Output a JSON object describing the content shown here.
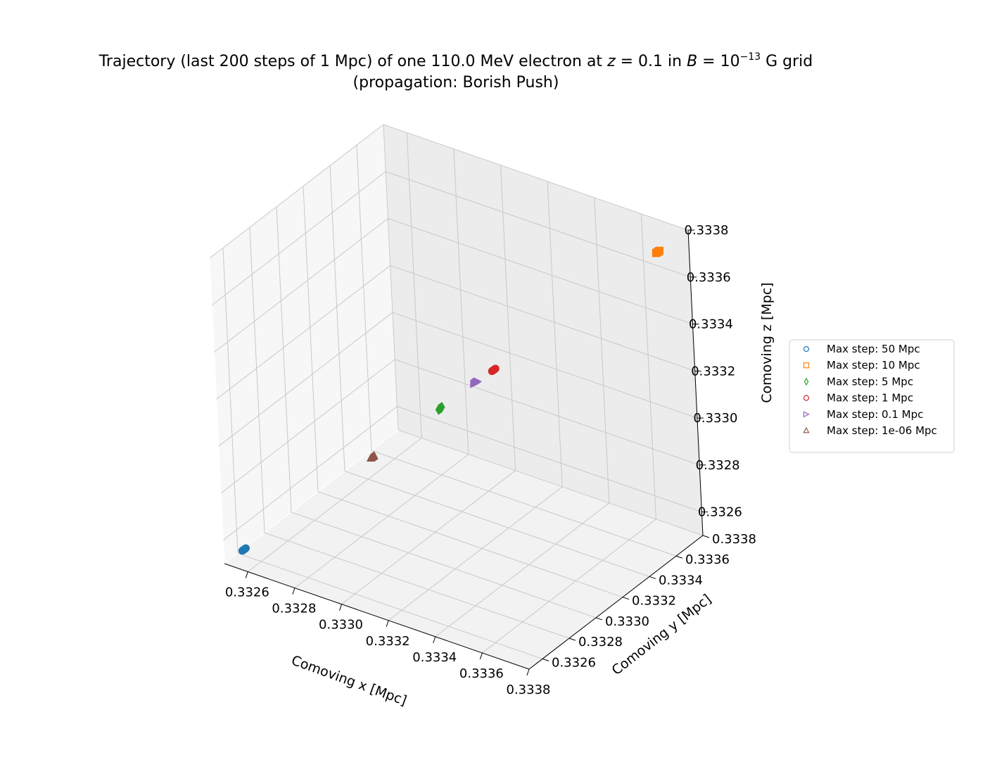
{
  "chart_data": {
    "type": "scatter",
    "title_line1_prefix": "Trajectory (last 200 steps of 1 Mpc) of one 110.0 MeV electron at ",
    "title_z_var": "z",
    "title_eq1": " = 0.1 in ",
    "title_b_var": "B",
    "title_eq2": " = 10",
    "title_exp": "−13",
    "title_suffix": " G grid",
    "title_line2": "(propagation: Borish Push)",
    "xlabel": "Comoving x [Mpc]",
    "ylabel": "Comoving y [Mpc]",
    "zlabel": "Comoving z [Mpc]",
    "x_ticks": [
      "0.3326",
      "0.3328",
      "0.3330",
      "0.3332",
      "0.3334",
      "0.3336",
      "0.3338"
    ],
    "y_ticks": [
      "0.3326",
      "0.3328",
      "0.3330",
      "0.3332",
      "0.3334",
      "0.3336",
      "0.3338"
    ],
    "z_ticks": [
      "0.3326",
      "0.3328",
      "0.3330",
      "0.3332",
      "0.3334",
      "0.3336",
      "0.3338"
    ],
    "xlim": [
      0.3325,
      0.3338
    ],
    "ylim": [
      0.3325,
      0.3338
    ],
    "zlim": [
      0.3325,
      0.3338
    ],
    "grid": true,
    "legend_position": "right",
    "series": [
      {
        "name": "Max step: 50 Mpc",
        "marker": "o",
        "color": "#1f77b4",
        "x": [
          0.33255,
          0.33256
        ],
        "y": [
          0.33255,
          0.33256
        ],
        "z": [
          0.33255,
          0.33256
        ]
      },
      {
        "name": "Max step: 10 Mpc",
        "marker": "s",
        "color": "#ff7f0e",
        "x": [
          0.33371,
          0.33372
        ],
        "y": [
          0.33371,
          0.33372
        ],
        "z": [
          0.33371,
          0.33372
        ]
      },
      {
        "name": "Max step: 5 Mpc",
        "marker": "d",
        "color": "#2ca02c",
        "x": [
          0.3331,
          0.33311
        ],
        "y": [
          0.3331,
          0.33311
        ],
        "z": [
          0.3331,
          0.33311
        ]
      },
      {
        "name": "Max step: 1 Mpc",
        "marker": "o",
        "color": "#d62728",
        "x": [
          0.33325,
          0.33326
        ],
        "y": [
          0.33325,
          0.33326
        ],
        "z": [
          0.33325,
          0.33326
        ]
      },
      {
        "name": "Max step: 0.1 Mpc",
        "marker": ">",
        "color": "#9467bd",
        "x": [
          0.3332,
          0.33321
        ],
        "y": [
          0.3332,
          0.33321
        ],
        "z": [
          0.3332,
          0.33321
        ]
      },
      {
        "name": "Max step: 1e-06 Mpc",
        "marker": "^",
        "color": "#8c564b",
        "x": [
          0.33291,
          0.33292
        ],
        "y": [
          0.33291,
          0.33292
        ],
        "z": [
          0.33291,
          0.33292
        ]
      }
    ]
  }
}
